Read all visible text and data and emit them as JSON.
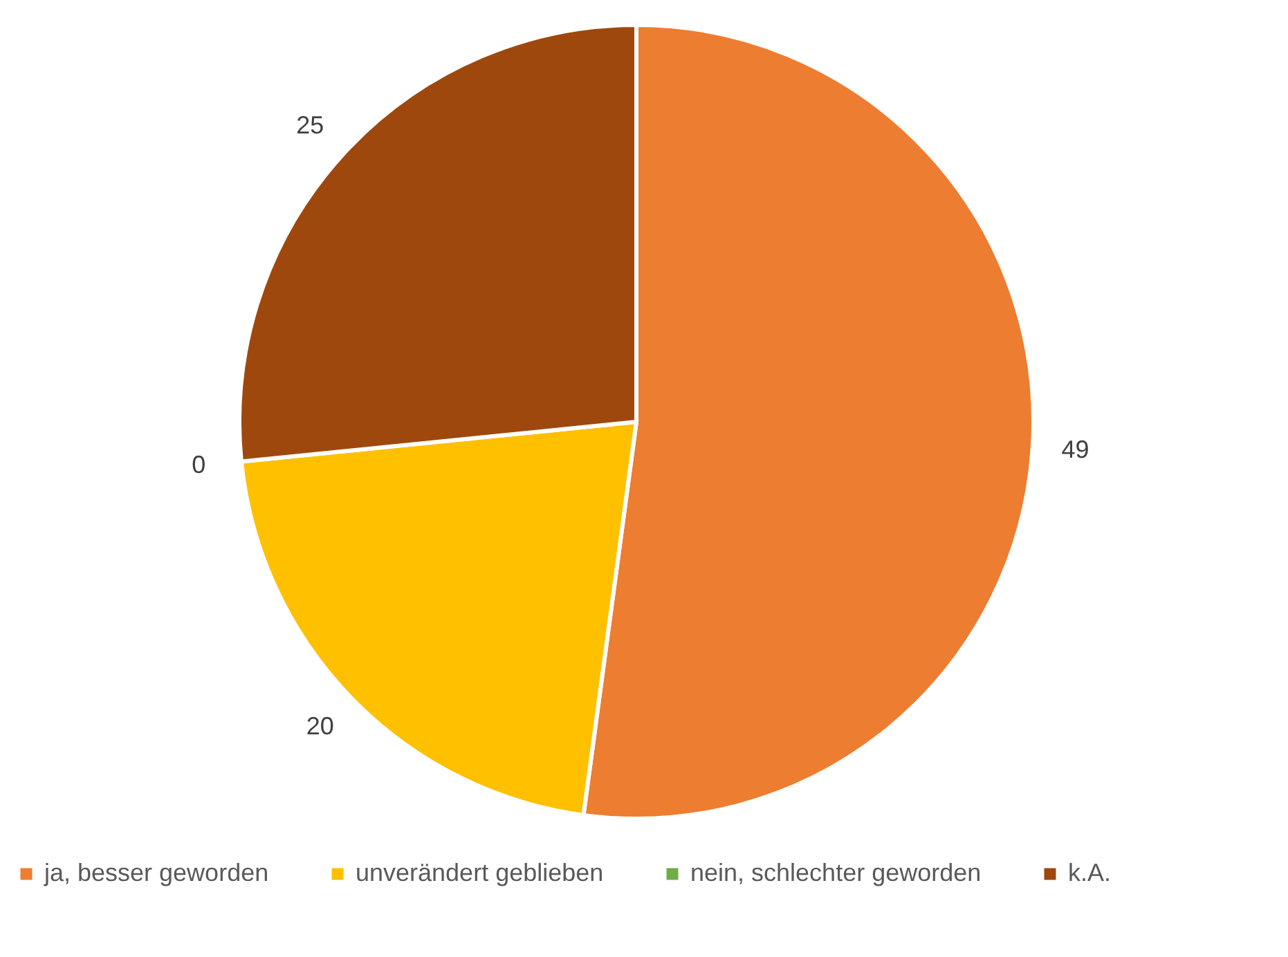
{
  "chart_data": {
    "type": "pie",
    "categories": [
      "ja, besser geworden",
      "unverändert geblieben",
      "nein, schlechter geworden",
      "k.A."
    ],
    "values": [
      49,
      20,
      0,
      25
    ],
    "colors": [
      "#ed7d31",
      "#ffc000",
      "#70ad47",
      "#9e480e"
    ],
    "value_labels": [
      "49",
      "20",
      "0",
      "25"
    ],
    "legend": "bottom"
  }
}
